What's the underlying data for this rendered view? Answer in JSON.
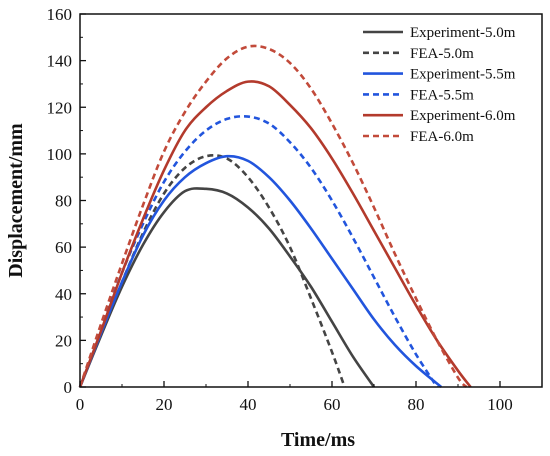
{
  "chart_data": {
    "type": "line",
    "xlabel": "Time/ms",
    "ylabel": "Displacement/mm",
    "xlim": [
      0,
      110
    ],
    "ylim": [
      0,
      160
    ],
    "xticks": [
      0,
      20,
      40,
      60,
      80,
      100
    ],
    "yticks": [
      0,
      20,
      40,
      60,
      80,
      100,
      120,
      140,
      160
    ],
    "grid": false,
    "legend_position": "top-right",
    "series": [
      {
        "name": "Experiment-5.0m",
        "color": "#444444",
        "dashed": false,
        "points": [
          [
            0,
            0
          ],
          [
            5,
            22
          ],
          [
            10,
            43
          ],
          [
            15,
            61
          ],
          [
            20,
            75
          ],
          [
            25,
            84
          ],
          [
            30,
            85
          ],
          [
            35,
            83
          ],
          [
            40,
            77
          ],
          [
            45,
            68
          ],
          [
            50,
            56
          ],
          [
            55,
            43
          ],
          [
            60,
            28
          ],
          [
            65,
            13
          ],
          [
            70,
            0
          ]
        ]
      },
      {
        "name": "FEA-5.0m",
        "color": "#444444",
        "dashed": true,
        "points": [
          [
            0,
            0
          ],
          [
            5,
            23
          ],
          [
            10,
            45
          ],
          [
            15,
            66
          ],
          [
            20,
            83
          ],
          [
            25,
            94
          ],
          [
            30,
            99
          ],
          [
            35,
            98
          ],
          [
            40,
            90
          ],
          [
            45,
            77
          ],
          [
            50,
            60
          ],
          [
            55,
            38
          ],
          [
            60,
            15
          ],
          [
            63,
            0
          ]
        ]
      },
      {
        "name": "Experiment-5.5m",
        "color": "#2255dd",
        "dashed": false,
        "points": [
          [
            0,
            0
          ],
          [
            5,
            23
          ],
          [
            10,
            45
          ],
          [
            15,
            65
          ],
          [
            20,
            80
          ],
          [
            25,
            90
          ],
          [
            30,
            96
          ],
          [
            35,
            99
          ],
          [
            40,
            97
          ],
          [
            45,
            90
          ],
          [
            50,
            80
          ],
          [
            55,
            68
          ],
          [
            60,
            55
          ],
          [
            65,
            42
          ],
          [
            70,
            29
          ],
          [
            75,
            18
          ],
          [
            80,
            9
          ],
          [
            86,
            0
          ]
        ]
      },
      {
        "name": "FEA-5.5m",
        "color": "#2255dd",
        "dashed": true,
        "points": [
          [
            0,
            0
          ],
          [
            5,
            25
          ],
          [
            10,
            49
          ],
          [
            15,
            70
          ],
          [
            20,
            88
          ],
          [
            25,
            101
          ],
          [
            30,
            110
          ],
          [
            35,
            115
          ],
          [
            40,
            116
          ],
          [
            45,
            113
          ],
          [
            50,
            105
          ],
          [
            55,
            94
          ],
          [
            60,
            80
          ],
          [
            65,
            64
          ],
          [
            70,
            47
          ],
          [
            75,
            30
          ],
          [
            80,
            14
          ],
          [
            85,
            0
          ]
        ]
      },
      {
        "name": "Experiment-6.0m",
        "color": "#b33a2c",
        "dashed": false,
        "points": [
          [
            0,
            0
          ],
          [
            5,
            24
          ],
          [
            10,
            49
          ],
          [
            15,
            72
          ],
          [
            20,
            93
          ],
          [
            25,
            110
          ],
          [
            30,
            120
          ],
          [
            35,
            127
          ],
          [
            40,
            131
          ],
          [
            45,
            129
          ],
          [
            50,
            121
          ],
          [
            55,
            111
          ],
          [
            60,
            98
          ],
          [
            65,
            83
          ],
          [
            70,
            67
          ],
          [
            75,
            51
          ],
          [
            80,
            35
          ],
          [
            85,
            20
          ],
          [
            90,
            7
          ],
          [
            93,
            0
          ]
        ]
      },
      {
        "name": "FEA-6.0m",
        "color": "#c24a3a",
        "dashed": true,
        "points": [
          [
            0,
            0
          ],
          [
            5,
            27
          ],
          [
            10,
            53
          ],
          [
            15,
            78
          ],
          [
            20,
            101
          ],
          [
            25,
            118
          ],
          [
            30,
            131
          ],
          [
            35,
            141
          ],
          [
            40,
            146
          ],
          [
            45,
            145
          ],
          [
            50,
            139
          ],
          [
            55,
            128
          ],
          [
            60,
            113
          ],
          [
            65,
            96
          ],
          [
            70,
            77
          ],
          [
            75,
            57
          ],
          [
            80,
            38
          ],
          [
            85,
            20
          ],
          [
            90,
            4
          ],
          [
            92,
            0
          ]
        ]
      }
    ]
  }
}
